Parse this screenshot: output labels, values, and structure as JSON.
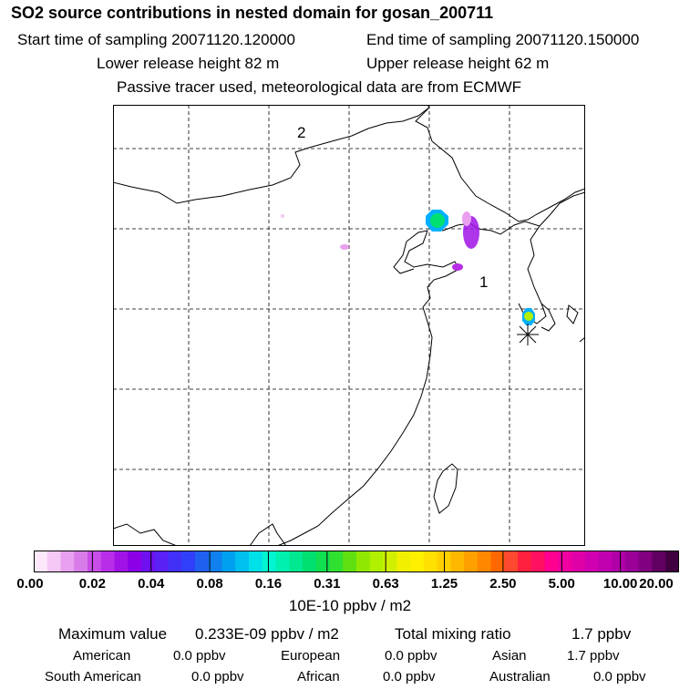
{
  "header": {
    "title": "SO2 source contributions in nested domain for gosan_200711",
    "start_time": "Start time of sampling 20071120.120000",
    "end_time": "End time of sampling 20071120.150000",
    "lower_height": "Lower release height   82 m",
    "upper_height": "Upper release height   62 m",
    "tracer_note": "Passive tracer used, meteorological data are from ECMWF"
  },
  "map": {
    "region_labels": [
      "1",
      "2"
    ],
    "colors": {
      "border": "#000000",
      "grid": "#000000"
    }
  },
  "colorbar": {
    "ticks": [
      "0.00",
      "0.02",
      "0.04",
      "0.08",
      "0.16",
      "0.31",
      "0.63",
      "1.25",
      "2.50",
      "5.00",
      "10.00",
      "20.00"
    ],
    "units": "10E-10 ppbv / m2",
    "colors": [
      "#fde8fb",
      "#f5c8f5",
      "#e9a0ee",
      "#d77ce9",
      "#c94ee8",
      "#b82ee8",
      "#a012e6",
      "#8c00e8",
      "#7010f0",
      "#5a20f5",
      "#4030f8",
      "#3040fa",
      "#2060f0",
      "#1080ee",
      "#00a0f0",
      "#00c0f0",
      "#00e0e8",
      "#00f5d0",
      "#00f0b0",
      "#00e890",
      "#00e070",
      "#10e050",
      "#30e030",
      "#60e010",
      "#90e800",
      "#b0f000",
      "#d0f000",
      "#f0f000",
      "#fff000",
      "#ffe000",
      "#ffd000",
      "#ffb800",
      "#ffa000",
      "#ff8800",
      "#ff6800",
      "#ff4830",
      "#ff2040",
      "#ff1060",
      "#ff0090",
      "#f000a0",
      "#e000a8",
      "#d000b0",
      "#c000b0",
      "#b000a8",
      "#9a0098",
      "#800080",
      "#600060",
      "#400040"
    ]
  },
  "summary": {
    "max_label": "Maximum value",
    "max_value": "0.233E-09 ppbv / m2",
    "total_label": "Total mixing ratio",
    "total_value": "1.7 ppbv",
    "sources": [
      {
        "name": "American",
        "value": "0.0 ppbv"
      },
      {
        "name": "European",
        "value": "0.0 ppbv"
      },
      {
        "name": "Asian",
        "value": "1.7 ppbv"
      },
      {
        "name": "South American",
        "value": "0.0 ppbv"
      },
      {
        "name": "African",
        "value": "0.0 ppbv"
      },
      {
        "name": "Australian",
        "value": "0.0 ppbv"
      }
    ]
  }
}
